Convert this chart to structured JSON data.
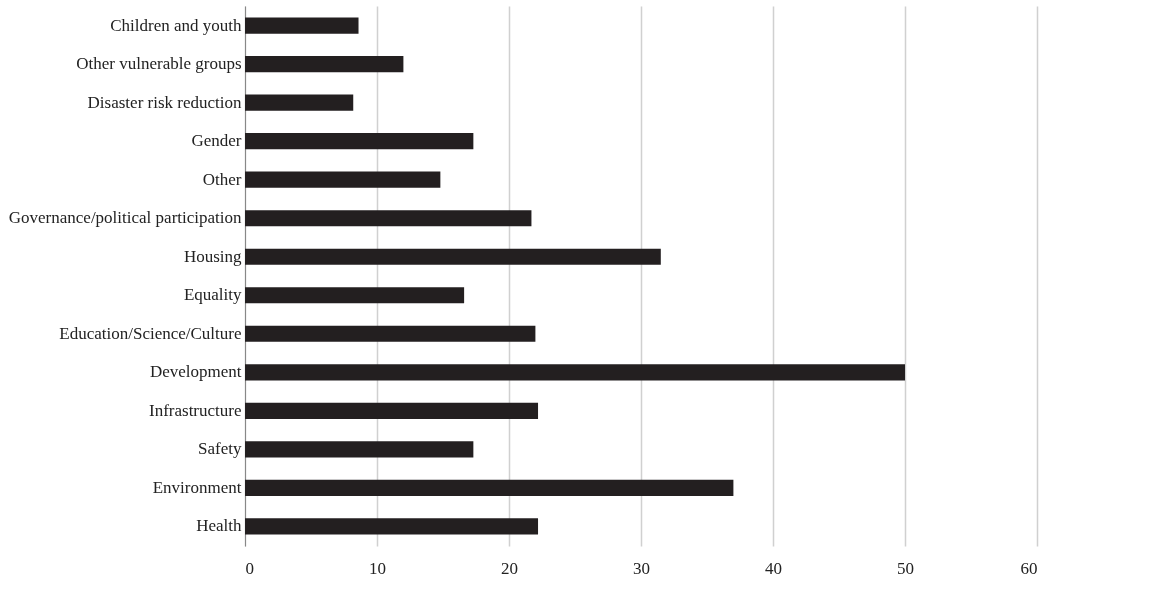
{
  "chart_data": {
    "type": "bar",
    "orientation": "horizontal",
    "categories": [
      "Children and youth",
      "Other vulnerable groups",
      "Disaster risk reduction",
      "Gender",
      "Other",
      "Governance/political participation",
      "Housing",
      "Equality",
      "Education/Science/Culture",
      "Development",
      "Infrastructure",
      "Safety",
      "Environment",
      "Health"
    ],
    "values": [
      8.6,
      12.0,
      8.2,
      17.3,
      14.8,
      21.7,
      31.5,
      16.6,
      22.0,
      50.0,
      22.2,
      17.3,
      37.0,
      22.2
    ],
    "color": "#231f20",
    "xlim": [
      0,
      60
    ],
    "xticks": [
      0,
      10,
      20,
      30,
      40,
      50,
      60
    ],
    "grid": "x"
  }
}
